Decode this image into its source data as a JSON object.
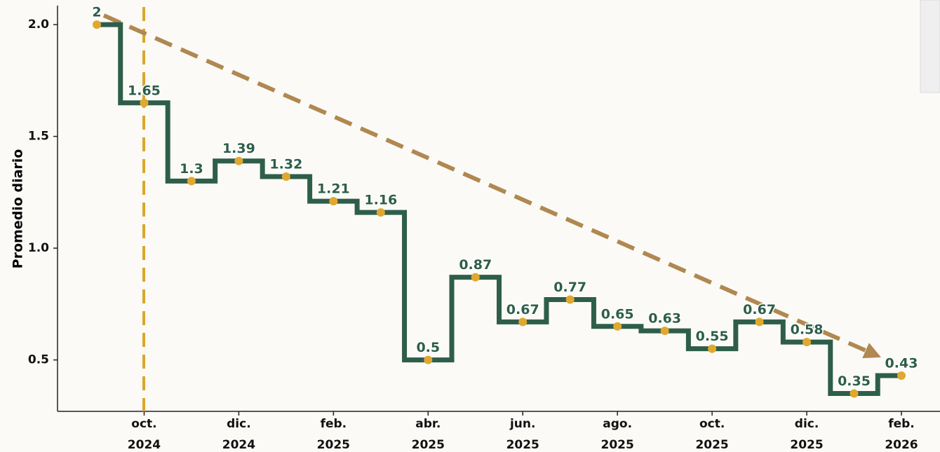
{
  "chart_data": {
    "type": "step",
    "y_label": "Promedio diario",
    "categories": [
      null,
      "oct. 2024",
      null,
      "dic. 2024",
      null,
      "feb. 2025",
      null,
      "abr. 2025",
      null,
      "jun. 2025",
      null,
      "ago. 2025",
      null,
      "oct. 2025",
      null,
      "dic. 2025",
      null,
      "feb. 2026"
    ],
    "values": [
      2,
      1.65,
      1.3,
      1.39,
      1.32,
      1.21,
      1.16,
      0.5,
      0.87,
      0.67,
      0.77,
      0.65,
      0.63,
      0.55,
      0.67,
      0.58,
      0.35,
      0.43
    ],
    "color": "#2e5e4a",
    "marker_color": "#e0a82e",
    "ylim": [
      0.27,
      2.085
    ],
    "yticks": [
      0.5,
      {
        "value": 1,
        "label": "1.0"
      },
      1.5,
      {
        "value": 2,
        "label": "2.0"
      }
    ]
  }
}
